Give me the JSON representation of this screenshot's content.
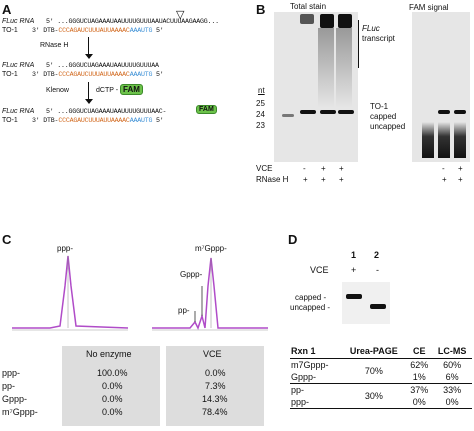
{
  "panels": {
    "a": "A",
    "b": "B",
    "c": "C",
    "d": "D"
  },
  "panel_a": {
    "row1": {
      "name": "FLuc RNA",
      "tag": "5'",
      "seq": "...GGGUCUAGAAAUAAUUUUGUUUAAUACUUUAAGAAGG...",
      "cut": "▽"
    },
    "row1b": {
      "name": "TO-1",
      "tag": "3' DTB-",
      "seq_or": "CCCAGAUCUUUAUUAAAAC",
      "seq_bl": "AAAUTG",
      "end": "5'"
    },
    "step1": "RNase H",
    "row2": {
      "name": "FLuc RNA",
      "tag": "5'",
      "seq": "...GGGUCUAGAAAUAAUUUUGUUUAA"
    },
    "row2b": {
      "name": "TO-1",
      "tag": "3' DTB-",
      "seq_or": "CCCAGAUCUUUAUUAAAAC",
      "seq_bl": "AAAUTG",
      "end": "5'"
    },
    "step2a": "Klenow",
    "step2b": "dCTP -",
    "fam": "FAM",
    "row3": {
      "name": "FLuc RNA",
      "tag": "5'",
      "seq": "...GGGUCUAGAAAUAAUUUUGUUUAA",
      "end": "C-"
    },
    "row3b": {
      "name": "TO-1",
      "tag": "3' DTB-",
      "seq_or": "CCCAGAUCUUUAUUAAAAC",
      "seq_bl": "AAAUTG",
      "end": "5'"
    }
  },
  "panel_b": {
    "total_stain": "Total stain",
    "fam_signal": "FAM signal",
    "fluc": "FLuc",
    "transcript": "transcript",
    "nt": "nt",
    "nt25": "25",
    "nt24": "24",
    "nt23": "23",
    "to1": "TO-1",
    "capped": "capped",
    "uncapped": "uncapped",
    "vce": "VCE",
    "rnase": "RNase H",
    "vce_marks": [
      "-",
      "+",
      "+"
    ],
    "rnase_marks": [
      "+",
      "+",
      "+"
    ],
    "vce_marks2": [
      "-",
      "+"
    ],
    "rnase_marks2": [
      "+",
      "+"
    ]
  },
  "panel_c": {
    "ppp1": "ppp-",
    "m7gppp": "m⁷Gppp-",
    "gppp": "Gppp-",
    "pp": "pp-",
    "col1": "No enzyme",
    "col2": "VCE",
    "rows": [
      {
        "label": "ppp-",
        "v1": "100.0%",
        "v2": "0.0%"
      },
      {
        "label": "pp-",
        "v1": "0.0%",
        "v2": "7.3%"
      },
      {
        "label": "Gppp-",
        "v1": "0.0%",
        "v2": "14.3%"
      },
      {
        "label": "m⁷Gppp-",
        "v1": "0.0%",
        "v2": "78.4%"
      }
    ]
  },
  "panel_d": {
    "lane1": "1",
    "lane2": "2",
    "vce": "VCE",
    "vce1": "+",
    "vce2": "-",
    "capped": "capped -",
    "uncapped": "uncapped -",
    "headers": [
      "Rxn 1",
      "Urea-PAGE",
      "CE",
      "LC-MS"
    ],
    "rows": [
      {
        "label": "m7Gppp-",
        "page": "70%",
        "ce": "62%",
        "lcms": "60%"
      },
      {
        "label": "Gppp-",
        "page": "",
        "ce": "1%",
        "lcms": "6%"
      },
      {
        "label": "pp-",
        "page": "30%",
        "ce": "37%",
        "lcms": "33%"
      },
      {
        "label": "ppp-",
        "page": "",
        "ce": "0%",
        "lcms": "0%"
      }
    ]
  }
}
